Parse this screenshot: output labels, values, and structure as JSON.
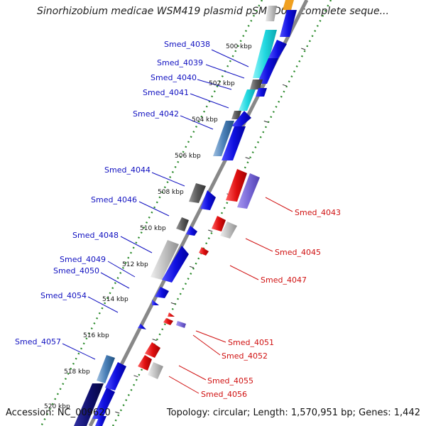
{
  "title": "Sinorhizobium medicae WSM419 plasmid pSMED01, complete seque...",
  "footer": {
    "accession": "Accession: NC_009620",
    "summary": "Topology: circular; Length: 1,570,951 bp; Genes: 1,442"
  },
  "scale": {
    "ticks": [
      {
        "label": "500 kbp",
        "kbp": 500
      },
      {
        "label": "502 kbp",
        "kbp": 502
      },
      {
        "label": "504 kbp",
        "kbp": 504
      },
      {
        "label": "506 kbp",
        "kbp": 506
      },
      {
        "label": "508 kbp",
        "kbp": 508
      },
      {
        "label": "510 kbp",
        "kbp": 510
      },
      {
        "label": "512 kbp",
        "kbp": 512
      },
      {
        "label": "514 kbp",
        "kbp": 514
      },
      {
        "label": "516 kbp",
        "kbp": 516
      },
      {
        "label": "518 kbp",
        "kbp": 518
      },
      {
        "label": "520 kbp",
        "kbp": 520
      }
    ]
  },
  "colors": {
    "forward_gene": "#1010e0",
    "reverse_gene": "#e01010",
    "forward_label": "#1010c0",
    "reverse_label": "#d01010",
    "backbone": "#888888",
    "gc_dots": "#2a8a2a",
    "cyan_track": "#22d8e0",
    "gray_track": "#b8b8b8",
    "dark_gray_track": "#666666",
    "navy_track": "#101070",
    "purple_track": "#7a6ad8",
    "orange_track": "#f0a020"
  },
  "labels_forward": [
    "Smed_4038",
    "Smed_4039",
    "Smed_4040",
    "Smed_4041",
    "Smed_4042",
    "Smed_4044",
    "Smed_4046",
    "Smed_4048",
    "Smed_4049",
    "Smed_4050",
    "Smed_4054",
    "Smed_4057"
  ],
  "labels_reverse": [
    "Smed_4043",
    "Smed_4045",
    "Smed_4047",
    "Smed_4051",
    "Smed_4052",
    "Smed_4055",
    "Smed_4056"
  ]
}
